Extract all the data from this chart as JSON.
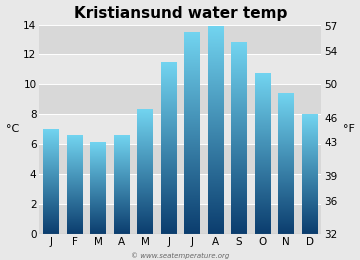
{
  "title": "Kristiansund water temp",
  "months": [
    "J",
    "F",
    "M",
    "A",
    "M",
    "J",
    "J",
    "A",
    "S",
    "O",
    "N",
    "D"
  ],
  "values_c": [
    7.0,
    6.6,
    6.1,
    6.6,
    8.3,
    11.5,
    13.5,
    13.9,
    12.8,
    10.7,
    9.4,
    8.0
  ],
  "ylabel_left": "°C",
  "ylabel_right": "°F",
  "ylim_c": [
    0,
    14
  ],
  "yticks_c": [
    0,
    2,
    4,
    6,
    8,
    10,
    12,
    14
  ],
  "yticks_f": [
    32,
    36,
    39,
    43,
    46,
    50,
    54,
    57
  ],
  "color_top": "#72d4f0",
  "color_bottom": "#0b3d6e",
  "bg_color": "#e8e8e8",
  "plot_bg_dark": "#d8d8d8",
  "plot_bg_light": "#e8e8e8",
  "watermark": "© www.seatemperature.org",
  "title_fontsize": 11,
  "axis_fontsize": 8,
  "tick_fontsize": 7.5
}
